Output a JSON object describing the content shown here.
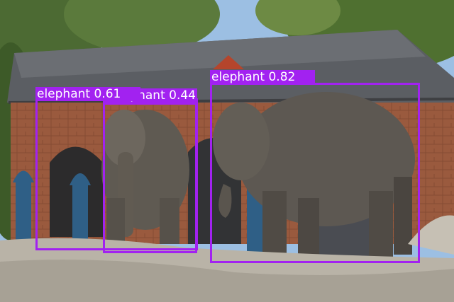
{
  "image": {
    "subject": "three-elephants-zoo-enclosure",
    "box_color": "#a222f0",
    "label_text_color": "#ffffff"
  },
  "detections": [
    {
      "label": "elephant 0.61",
      "class_name": "elephant",
      "confidence": 0.61
    },
    {
      "label": "elephant 0.44",
      "class_name": "elephant",
      "confidence": 0.44
    },
    {
      "label": "elephant 0.82",
      "class_name": "elephant",
      "confidence": 0.82
    }
  ]
}
